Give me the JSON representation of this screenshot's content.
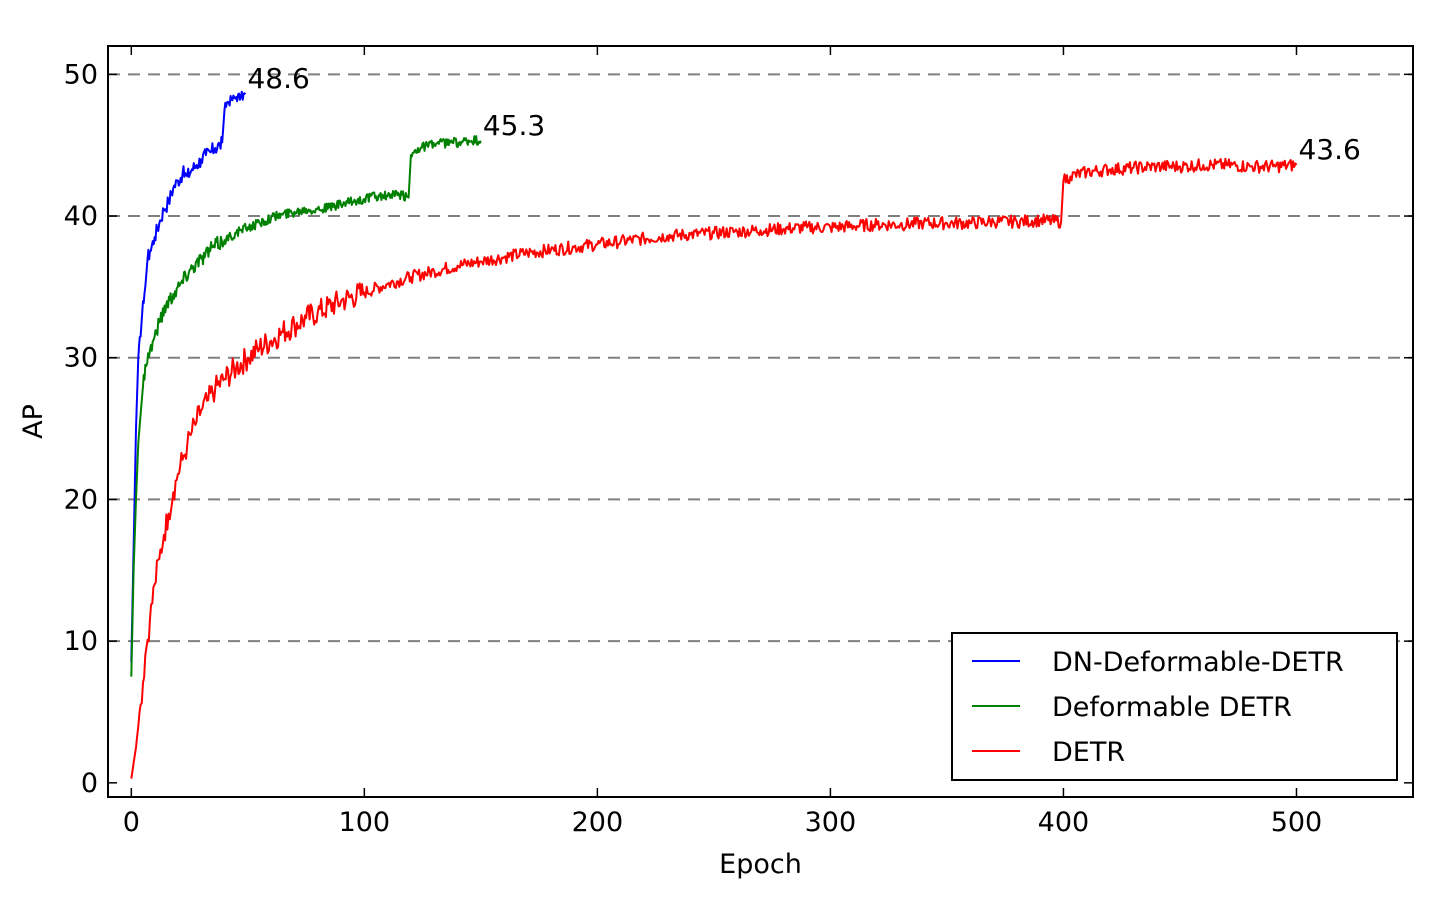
{
  "chart_data": {
    "type": "line",
    "xlabel": "Epoch",
    "ylabel": "AP",
    "xlim": [
      -10,
      550
    ],
    "ylim": [
      -1,
      52
    ],
    "xticks": [
      0,
      100,
      200,
      300,
      400,
      500
    ],
    "yticks": [
      0,
      10,
      20,
      30,
      40,
      50
    ],
    "grid": "horizontal dashed",
    "legend_position": "bottom-right",
    "series": [
      {
        "name": "DN-Deformable-DETR",
        "color": "#0000ff",
        "end_label": "48.6",
        "points": [
          [
            0,
            8.5
          ],
          [
            1,
            16.5
          ],
          [
            2,
            25.0
          ],
          [
            3,
            30.0
          ],
          [
            4,
            31.5
          ],
          [
            5,
            34.0
          ],
          [
            6,
            35.0
          ],
          [
            7,
            37.0
          ],
          [
            8,
            37.5
          ],
          [
            10,
            38.5
          ],
          [
            12,
            39.5
          ],
          [
            14,
            40.5
          ],
          [
            16,
            41.0
          ],
          [
            18,
            42.0
          ],
          [
            20,
            42.5
          ],
          [
            22,
            43.0
          ],
          [
            24,
            42.8
          ],
          [
            26,
            43.3
          ],
          [
            28,
            43.6
          ],
          [
            30,
            44.0
          ],
          [
            32,
            44.3
          ],
          [
            34,
            44.5
          ],
          [
            36,
            44.8
          ],
          [
            38,
            45.0
          ],
          [
            39,
            45.2
          ],
          [
            40,
            47.5
          ],
          [
            41,
            48.0
          ],
          [
            43,
            48.2
          ],
          [
            45,
            48.4
          ],
          [
            47,
            48.4
          ],
          [
            49,
            48.6
          ]
        ]
      },
      {
        "name": "Deformable DETR",
        "color": "#008000",
        "end_label": "45.3",
        "points": [
          [
            0,
            7.5
          ],
          [
            1,
            15.0
          ],
          [
            2,
            20.0
          ],
          [
            3,
            24.0
          ],
          [
            4,
            26.0
          ],
          [
            5,
            28.0
          ],
          [
            6,
            29.5
          ],
          [
            8,
            30.5
          ],
          [
            10,
            31.5
          ],
          [
            12,
            32.5
          ],
          [
            15,
            33.8
          ],
          [
            18,
            34.5
          ],
          [
            21,
            35.2
          ],
          [
            25,
            36.2
          ],
          [
            30,
            37.0
          ],
          [
            35,
            37.8
          ],
          [
            40,
            38.3
          ],
          [
            45,
            38.8
          ],
          [
            50,
            39.2
          ],
          [
            55,
            39.5
          ],
          [
            60,
            39.9
          ],
          [
            65,
            40.1
          ],
          [
            70,
            40.3
          ],
          [
            75,
            40.5
          ],
          [
            80,
            40.5
          ],
          [
            85,
            40.6
          ],
          [
            90,
            40.8
          ],
          [
            95,
            41.0
          ],
          [
            100,
            41.2
          ],
          [
            105,
            41.4
          ],
          [
            110,
            41.4
          ],
          [
            115,
            41.5
          ],
          [
            119,
            41.3
          ],
          [
            120,
            44.3
          ],
          [
            123,
            44.8
          ],
          [
            127,
            45.0
          ],
          [
            132,
            45.1
          ],
          [
            137,
            45.2
          ],
          [
            142,
            45.2
          ],
          [
            146,
            45.3
          ],
          [
            150,
            45.3
          ]
        ]
      },
      {
        "name": "DETR",
        "color": "#ff0000",
        "end_label": "43.6",
        "points": [
          [
            0,
            0.3
          ],
          [
            2,
            2.5
          ],
          [
            4,
            5.5
          ],
          [
            6,
            9.0
          ],
          [
            8,
            11.5
          ],
          [
            10,
            14.0
          ],
          [
            12,
            15.8
          ],
          [
            14,
            17.5
          ],
          [
            16,
            19.0
          ],
          [
            18,
            20.5
          ],
          [
            20,
            21.8
          ],
          [
            22,
            22.8
          ],
          [
            24,
            23.8
          ],
          [
            26,
            24.8
          ],
          [
            28,
            25.5
          ],
          [
            30,
            26.3
          ],
          [
            33,
            27.0
          ],
          [
            36,
            27.8
          ],
          [
            40,
            28.5
          ],
          [
            45,
            29.3
          ],
          [
            50,
            30.0
          ],
          [
            55,
            30.7
          ],
          [
            60,
            31.2
          ],
          [
            65,
            31.8
          ],
          [
            70,
            32.3
          ],
          [
            75,
            32.8
          ],
          [
            80,
            33.2
          ],
          [
            90,
            34.0
          ],
          [
            100,
            34.6
          ],
          [
            110,
            35.2
          ],
          [
            120,
            35.7
          ],
          [
            130,
            36.1
          ],
          [
            140,
            36.5
          ],
          [
            150,
            36.8
          ],
          [
            160,
            37.1
          ],
          [
            170,
            37.4
          ],
          [
            180,
            37.6
          ],
          [
            190,
            37.8
          ],
          [
            200,
            38.0
          ],
          [
            210,
            38.2
          ],
          [
            220,
            38.4
          ],
          [
            230,
            38.6
          ],
          [
            240,
            38.7
          ],
          [
            250,
            38.8
          ],
          [
            260,
            38.9
          ],
          [
            270,
            39.0
          ],
          [
            280,
            39.1
          ],
          [
            290,
            39.2
          ],
          [
            300,
            39.2
          ],
          [
            310,
            39.3
          ],
          [
            320,
            39.4
          ],
          [
            330,
            39.4
          ],
          [
            340,
            39.5
          ],
          [
            350,
            39.5
          ],
          [
            360,
            39.5
          ],
          [
            370,
            39.6
          ],
          [
            380,
            39.6
          ],
          [
            390,
            39.7
          ],
          [
            399,
            39.6
          ],
          [
            400,
            42.5
          ],
          [
            403,
            42.8
          ],
          [
            410,
            43.1
          ],
          [
            420,
            43.3
          ],
          [
            430,
            43.4
          ],
          [
            440,
            43.5
          ],
          [
            450,
            43.5
          ],
          [
            460,
            43.6
          ],
          [
            470,
            43.6
          ],
          [
            480,
            43.5
          ],
          [
            490,
            43.5
          ],
          [
            500,
            43.6
          ]
        ]
      }
    ]
  }
}
